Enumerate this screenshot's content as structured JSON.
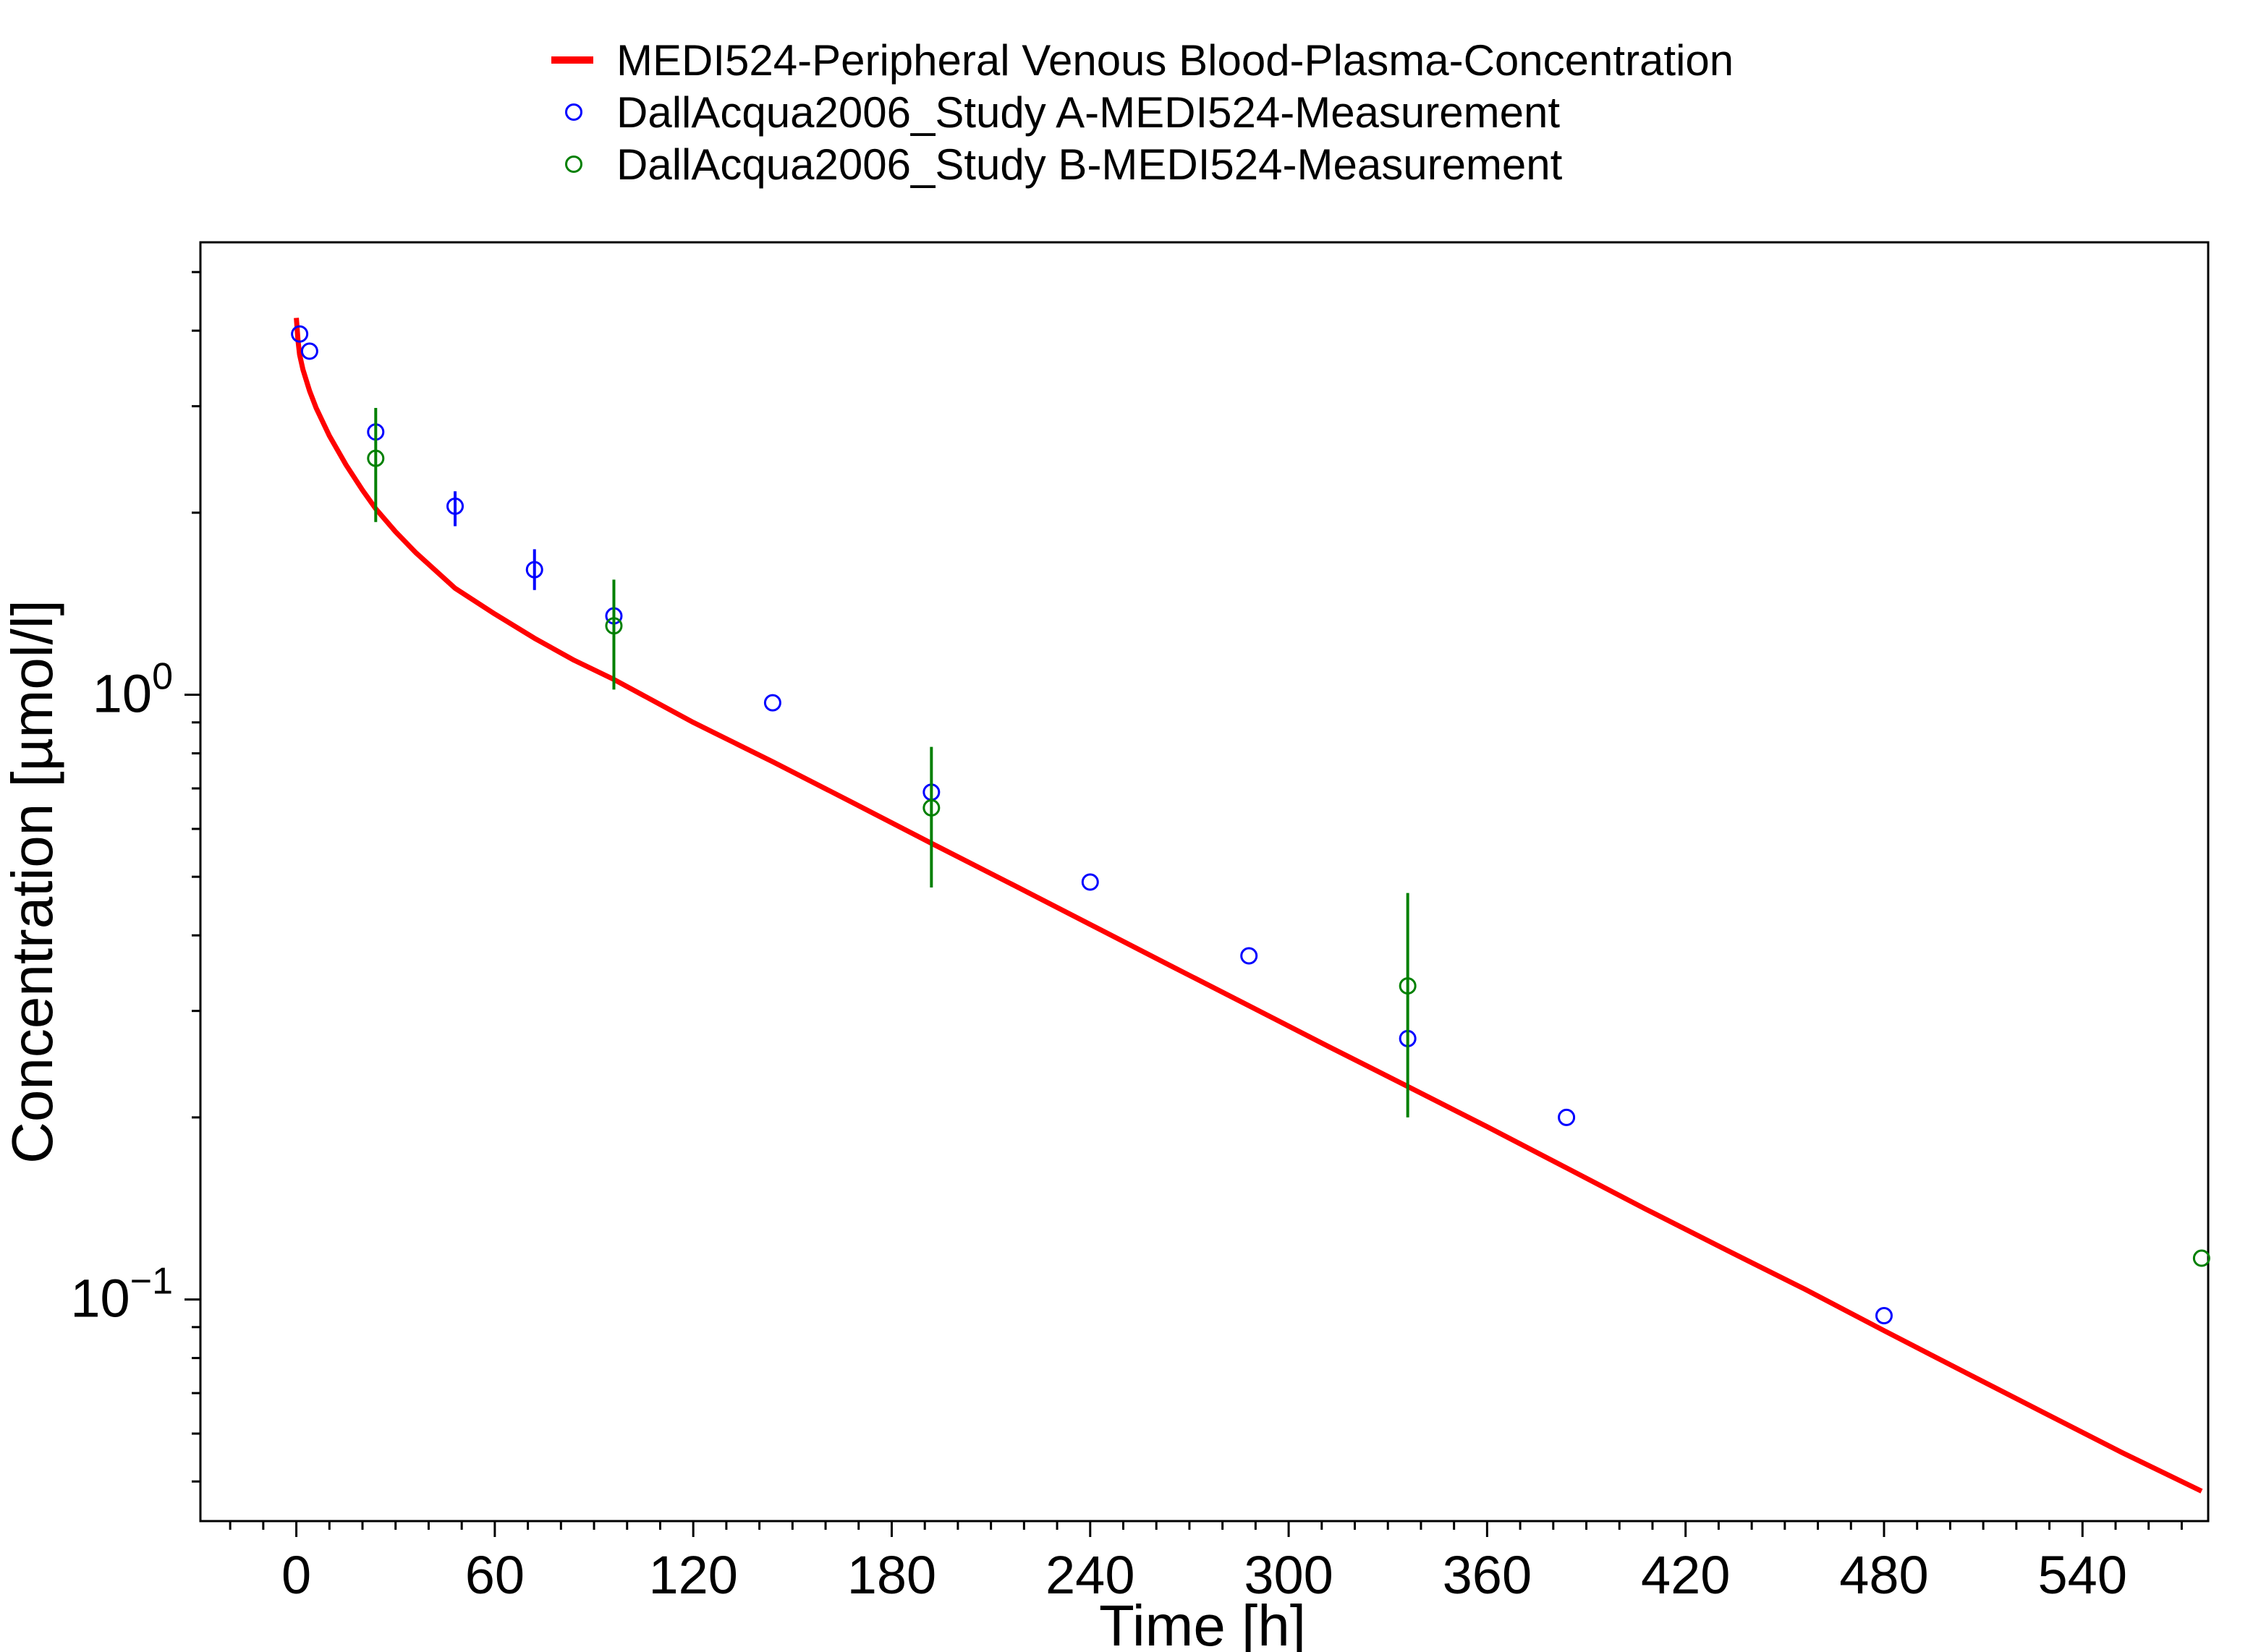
{
  "chart_data": {
    "type": "scatter",
    "xlabel": "Time [h]",
    "ylabel": "Concentration [µmol/l]",
    "x_scale": "linear",
    "y_scale": "log",
    "xlim": [
      -29,
      578
    ],
    "ylim": [
      0.043,
      5.6
    ],
    "x_ticks": [
      0,
      60,
      120,
      180,
      240,
      300,
      360,
      420,
      480,
      540
    ],
    "x_tick_labels": [
      "0",
      "60",
      "120",
      "180",
      "240",
      "300",
      "360",
      "420",
      "480",
      "540"
    ],
    "y_ticks": [
      1,
      0.1
    ],
    "y_tick_labels": [
      {
        "base": "10",
        "exp": "0"
      },
      {
        "base": "10",
        "exp": "−1"
      }
    ],
    "grid": false,
    "legend_position": "top-center",
    "legend": [
      {
        "label": "MEDI524-Peripheral Venous Blood-Plasma-Concentration",
        "marker": "line",
        "color": "#ff0000"
      },
      {
        "label": "DallAcqua2006_Study A-MEDI524-Measurement",
        "marker": "circle",
        "color": "#0000ff"
      },
      {
        "label": "DallAcqua2006_Study B-MEDI524-Measurement",
        "marker": "circle",
        "color": "#008000"
      }
    ],
    "series": [
      {
        "name": "MEDI524-Peripheral Venous Blood-Plasma-Concentration",
        "kind": "line",
        "color": "#ff0000",
        "x": [
          0,
          0.5,
          1,
          2,
          4,
          6,
          10,
          15,
          20,
          24,
          30,
          36,
          48,
          60,
          72,
          84,
          96,
          120,
          144,
          168,
          192,
          216,
          240,
          264,
          288,
          312,
          336,
          360,
          384,
          408,
          432,
          456,
          480,
          504,
          528,
          552,
          576
        ],
        "y": [
          4.2,
          3.85,
          3.65,
          3.45,
          3.18,
          2.98,
          2.68,
          2.4,
          2.18,
          2.03,
          1.86,
          1.72,
          1.5,
          1.36,
          1.24,
          1.14,
          1.06,
          0.9,
          0.775,
          0.664,
          0.568,
          0.487,
          0.417,
          0.357,
          0.306,
          0.262,
          0.225,
          0.193,
          0.165,
          0.141,
          0.121,
          0.104,
          0.0888,
          0.076,
          0.0651,
          0.0558,
          0.0482
        ]
      },
      {
        "name": "DallAcqua2006_Study A-MEDI524-Measurement",
        "kind": "scatter",
        "color": "#0000ff",
        "x": [
          1,
          4,
          24,
          48,
          72,
          96,
          144,
          192,
          240,
          288,
          336,
          384,
          480
        ],
        "y": [
          3.95,
          3.7,
          2.72,
          2.05,
          1.61,
          1.35,
          0.97,
          0.69,
          0.49,
          0.37,
          0.27,
          0.2,
          0.094
        ],
        "error_low": [
          null,
          null,
          null,
          1.9,
          1.49,
          null,
          null,
          null,
          null,
          null,
          null,
          null,
          null
        ],
        "error_high": [
          null,
          null,
          null,
          2.17,
          1.74,
          null,
          null,
          null,
          null,
          null,
          null,
          null,
          null
        ]
      },
      {
        "name": "DallAcqua2006_Study B-MEDI524-Measurement",
        "kind": "scatter",
        "color": "#008000",
        "x": [
          24,
          96,
          192,
          336,
          576
        ],
        "y": [
          2.46,
          1.3,
          0.65,
          0.33,
          0.117
        ],
        "error_low": [
          1.93,
          1.02,
          0.48,
          0.2,
          null
        ],
        "error_high": [
          2.98,
          1.55,
          0.82,
          0.47,
          null
        ]
      }
    ]
  }
}
